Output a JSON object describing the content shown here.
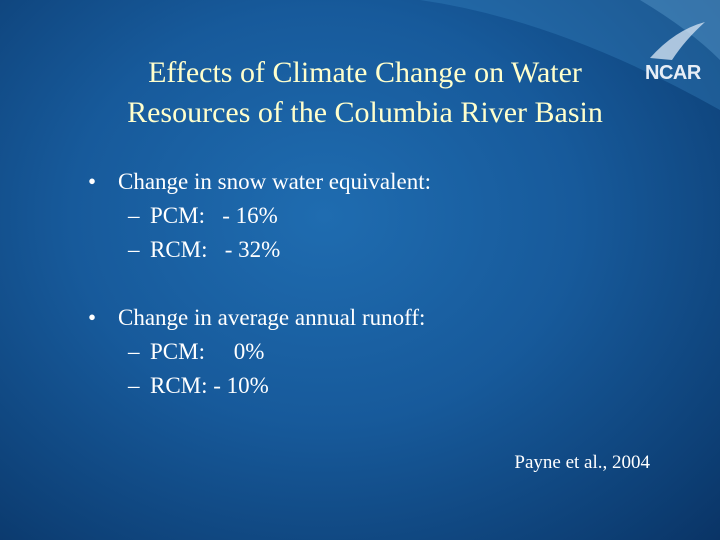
{
  "slide": {
    "logo": "NCAR",
    "title_lines": [
      "Effects of Climate Change on Water",
      "Resources of the Columbia River Basin"
    ],
    "bullets": [
      {
        "text": "Change in snow water equivalent:",
        "items": [
          "PCM:   - 16%",
          "RCM:   - 32%"
        ]
      },
      {
        "text": "Change in average annual runoff:",
        "items": [
          "PCM:     0%",
          "RCM: - 10%"
        ]
      }
    ],
    "citation": "Payne et al., 2004"
  }
}
